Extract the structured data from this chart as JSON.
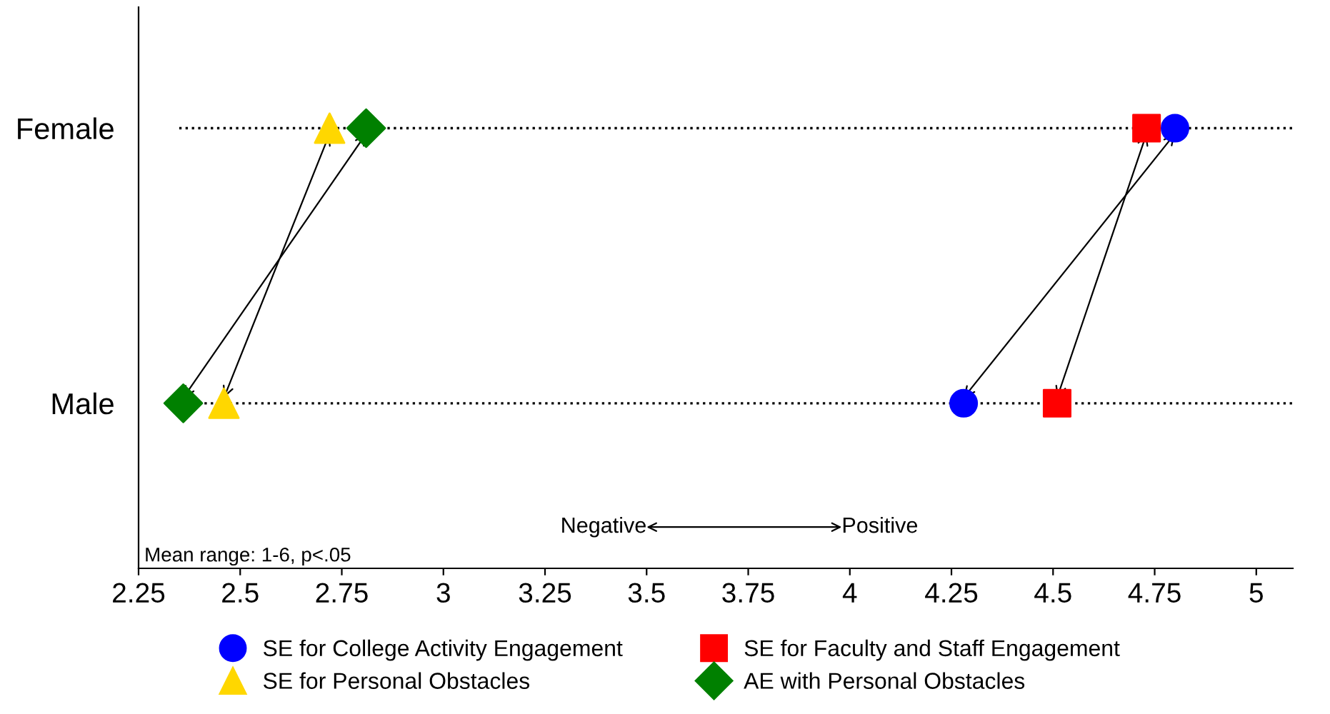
{
  "chart_data": {
    "type": "scatter",
    "orientation": "horizontal",
    "categories": [
      "Female",
      "Male"
    ],
    "series": [
      {
        "name": "SE for College Activity Engagement",
        "color": "#0000ff",
        "marker": "circle",
        "values": [
          4.8,
          4.28
        ]
      },
      {
        "name": "SE for Faculty and Staff Engagement",
        "color": "#ff0000",
        "marker": "square",
        "values": [
          4.73,
          4.51
        ]
      },
      {
        "name": "SE for Personal Obstacles",
        "color": "#ffd700",
        "marker": "triangle",
        "values": [
          2.72,
          2.46
        ]
      },
      {
        "name": "AE with Personal Obstacles",
        "color": "#008000",
        "marker": "diamond",
        "values": [
          2.81,
          2.36
        ]
      }
    ],
    "xlim": [
      2.25,
      5.09
    ],
    "xticks": [
      2.25,
      2.5,
      2.75,
      3,
      3.25,
      3.5,
      3.75,
      4,
      4.25,
      4.5,
      4.75,
      5
    ],
    "grid": "y",
    "line_style": "dotted",
    "legend": "bottom",
    "annotations": [
      "Negative",
      "Positive",
      "Mean range: 1-6, p<.05"
    ]
  }
}
